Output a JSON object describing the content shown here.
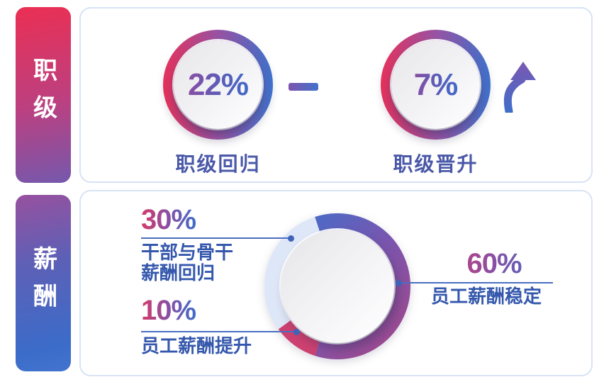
{
  "panels": {
    "rank": {
      "tab": "职级",
      "items": [
        {
          "value": "22%",
          "label": "职级回归",
          "indicator": "minus"
        },
        {
          "value": "7%",
          "label": "职级晋升",
          "indicator": "up-arrow"
        }
      ]
    },
    "salary": {
      "tab": "薪酬",
      "callouts": [
        {
          "value": "30%",
          "label_lines": [
            "干部与骨干",
            "薪酬回归"
          ]
        },
        {
          "value": "10%",
          "label_lines": [
            "员工薪酬提升"
          ]
        },
        {
          "value": "60%",
          "label_lines": [
            "员工薪酬稳定"
          ]
        }
      ]
    }
  },
  "colors": {
    "accent_pink": "#E5315B",
    "accent_blue": "#3E71CB",
    "accent_purple": "#9852A2",
    "caption_text": "#4A58A8",
    "callout_text": "#3558AD",
    "leader_line": "#4A6FC0",
    "panel_border": "#D8E3F5"
  },
  "chart_data": [
    {
      "type": "pie",
      "title": "职级",
      "unit": "%",
      "style": "percentage badges in gradient rings",
      "values": [
        {
          "label": "职级回归",
          "value": 22,
          "indicator": "minus"
        },
        {
          "label": "职级晋升",
          "value": 7,
          "indicator": "up-arrow"
        }
      ]
    },
    {
      "type": "pie",
      "title": "薪酬",
      "unit": "%",
      "start_angle_deg": -18,
      "clockwise": true,
      "legend_position": "callouts with leader lines",
      "slices": [
        {
          "label": "员工薪酬稳定",
          "value": 60,
          "color": "gradient"
        },
        {
          "label": "员工薪酬提升",
          "value": 10,
          "color": "#CD4170"
        },
        {
          "label": "干部与骨干薪酬回归",
          "value": 30,
          "color": "#DEE7F7"
        }
      ],
      "gradient": [
        "#466DC9",
        "#7A55AE",
        "#A04A90"
      ]
    }
  ]
}
